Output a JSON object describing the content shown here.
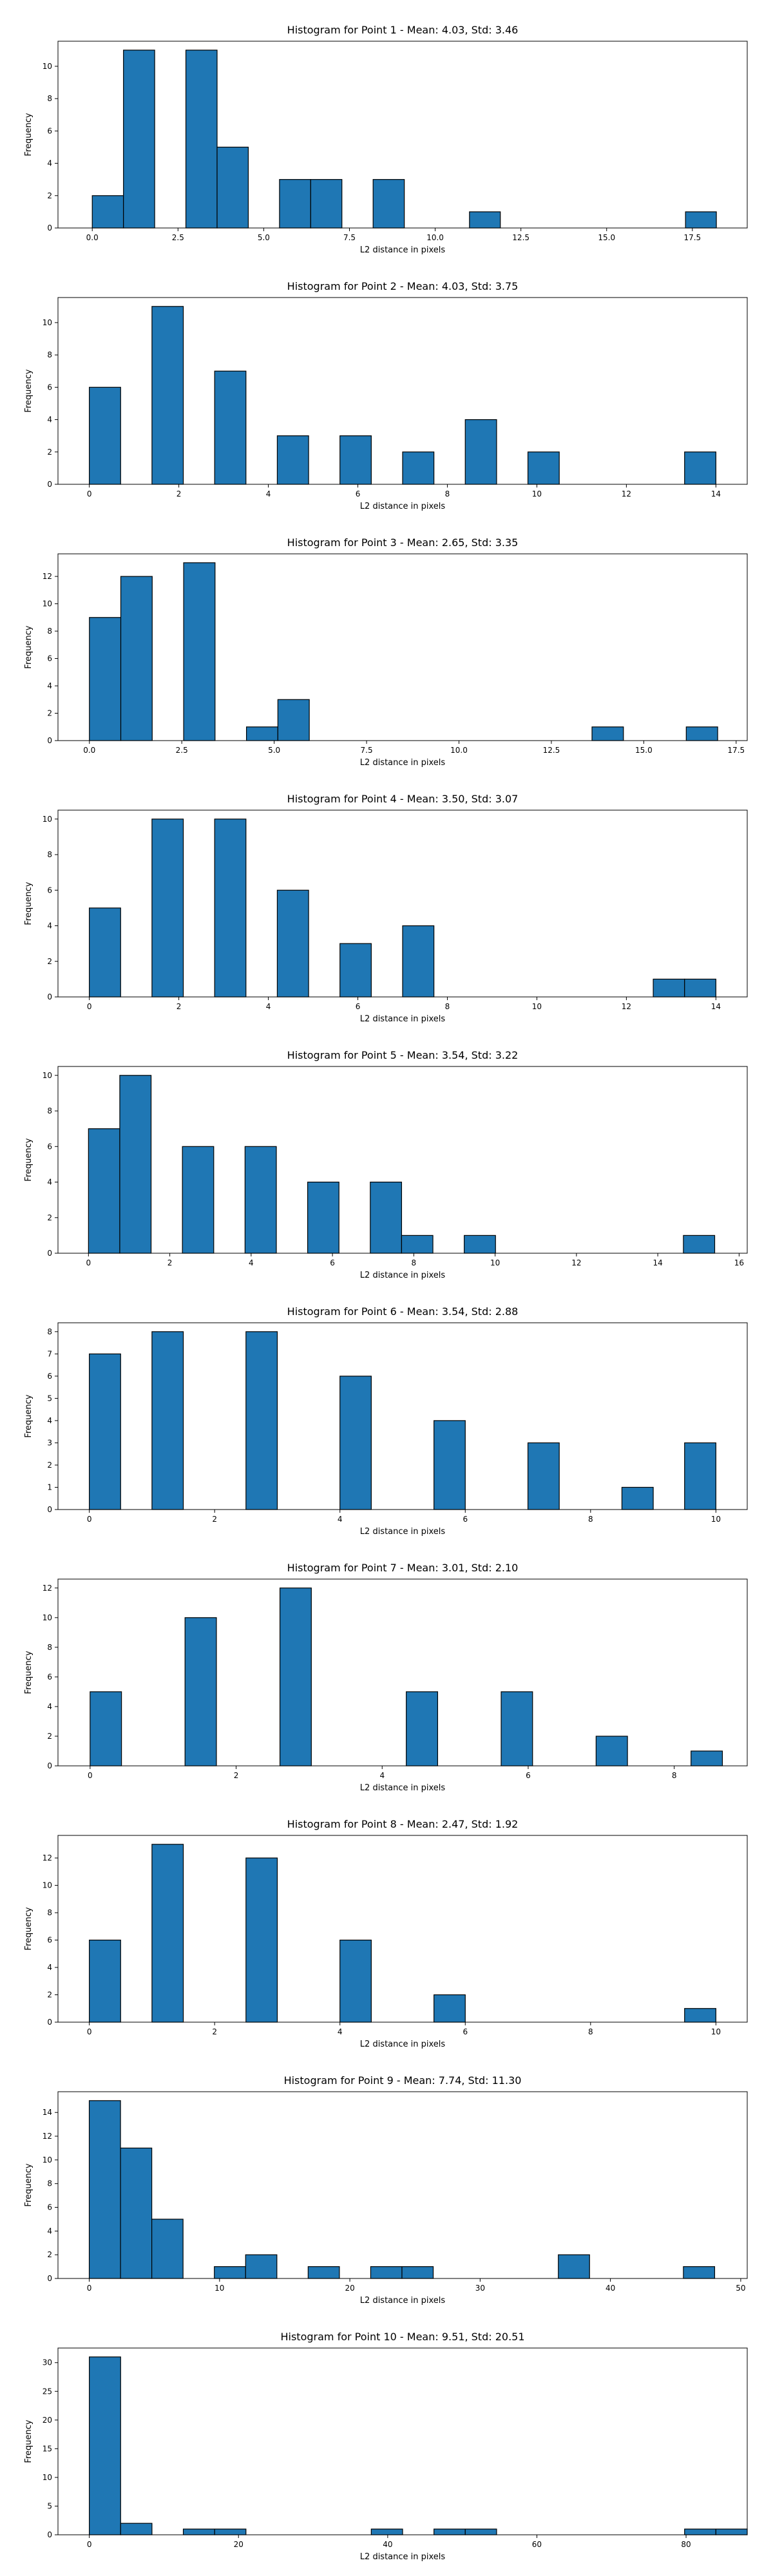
{
  "chart_data": [
    {
      "type": "bar",
      "title": "Histogram for Point 1 - Mean: 4.03, Std: 3.46",
      "xlabel": "L2 distance in pixels",
      "ylabel": "Frequency",
      "xlim": [
        -1.0,
        19.1
      ],
      "ylim": [
        0,
        11.55
      ],
      "xticks": [
        0.0,
        2.5,
        5.0,
        7.5,
        10.0,
        12.5,
        15.0,
        17.5
      ],
      "xtick_labels": [
        "0.0",
        "2.5",
        "5.0",
        "7.5",
        "10.0",
        "12.5",
        "15.0",
        "17.5"
      ],
      "yticks": [
        0,
        2,
        4,
        6,
        8,
        10
      ],
      "bars": [
        {
          "start": 0.0,
          "end": 0.91,
          "count": 2
        },
        {
          "start": 0.91,
          "end": 1.82,
          "count": 11
        },
        {
          "start": 2.73,
          "end": 3.64,
          "count": 11
        },
        {
          "start": 3.64,
          "end": 4.55,
          "count": 5
        },
        {
          "start": 5.46,
          "end": 6.37,
          "count": 3
        },
        {
          "start": 6.37,
          "end": 7.28,
          "count": 3
        },
        {
          "start": 8.19,
          "end": 9.1,
          "count": 3
        },
        {
          "start": 11.0,
          "end": 11.9,
          "count": 1
        },
        {
          "start": 17.3,
          "end": 18.2,
          "count": 1
        }
      ]
    },
    {
      "type": "bar",
      "title": "Histogram for Point 2 - Mean: 4.03, Std: 3.75",
      "xlabel": "L2 distance in pixels",
      "ylabel": "Frequency",
      "xlim": [
        -0.7,
        14.7
      ],
      "ylim": [
        0,
        11.55
      ],
      "xticks": [
        0,
        2,
        4,
        6,
        8,
        10,
        12,
        14
      ],
      "xtick_labels": [
        "0",
        "2",
        "4",
        "6",
        "8",
        "10",
        "12",
        "14"
      ],
      "yticks": [
        0,
        2,
        4,
        6,
        8,
        10
      ],
      "bars": [
        {
          "start": 0.0,
          "end": 0.7,
          "count": 6
        },
        {
          "start": 1.4,
          "end": 2.1,
          "count": 11
        },
        {
          "start": 2.8,
          "end": 3.5,
          "count": 7
        },
        {
          "start": 4.2,
          "end": 4.9,
          "count": 3
        },
        {
          "start": 5.6,
          "end": 6.3,
          "count": 3
        },
        {
          "start": 7.0,
          "end": 7.7,
          "count": 2
        },
        {
          "start": 8.4,
          "end": 9.1,
          "count": 4
        },
        {
          "start": 9.8,
          "end": 10.5,
          "count": 2
        },
        {
          "start": 13.3,
          "end": 14.0,
          "count": 2
        }
      ]
    },
    {
      "type": "bar",
      "title": "Histogram for Point 3 - Mean: 2.65, Std: 3.35",
      "xlabel": "L2 distance in pixels",
      "ylabel": "Frequency",
      "xlim": [
        -0.85,
        17.8
      ],
      "ylim": [
        0,
        13.65
      ],
      "xticks": [
        0.0,
        2.5,
        5.0,
        7.5,
        10.0,
        12.5,
        15.0,
        17.5
      ],
      "xtick_labels": [
        "0.0",
        "2.5",
        "5.0",
        "7.5",
        "10.0",
        "12.5",
        "15.0",
        "17.5"
      ],
      "yticks": [
        0,
        2,
        4,
        6,
        8,
        10,
        12
      ],
      "bars": [
        {
          "start": 0.0,
          "end": 0.85,
          "count": 9
        },
        {
          "start": 0.85,
          "end": 1.7,
          "count": 12
        },
        {
          "start": 2.55,
          "end": 3.4,
          "count": 13
        },
        {
          "start": 4.25,
          "end": 5.1,
          "count": 1
        },
        {
          "start": 5.1,
          "end": 5.95,
          "count": 3
        },
        {
          "start": 13.6,
          "end": 14.45,
          "count": 1
        },
        {
          "start": 16.15,
          "end": 17.0,
          "count": 1
        }
      ]
    },
    {
      "type": "bar",
      "title": "Histogram for Point 4 - Mean: 3.50, Std: 3.07",
      "xlabel": "L2 distance in pixels",
      "ylabel": "Frequency",
      "xlim": [
        -0.7,
        14.7
      ],
      "ylim": [
        0,
        10.5
      ],
      "xticks": [
        0,
        2,
        4,
        6,
        8,
        10,
        12,
        14
      ],
      "xtick_labels": [
        "0",
        "2",
        "4",
        "6",
        "8",
        "10",
        "12",
        "14"
      ],
      "yticks": [
        0,
        2,
        4,
        6,
        8,
        10
      ],
      "bars": [
        {
          "start": 0.0,
          "end": 0.7,
          "count": 5
        },
        {
          "start": 1.4,
          "end": 2.1,
          "count": 10
        },
        {
          "start": 2.8,
          "end": 3.5,
          "count": 10
        },
        {
          "start": 4.2,
          "end": 4.9,
          "count": 6
        },
        {
          "start": 5.6,
          "end": 6.3,
          "count": 3
        },
        {
          "start": 7.0,
          "end": 7.7,
          "count": 4
        },
        {
          "start": 12.6,
          "end": 13.3,
          "count": 1
        },
        {
          "start": 13.3,
          "end": 14.0,
          "count": 1
        }
      ]
    },
    {
      "type": "bar",
      "title": "Histogram for Point 5 - Mean: 3.54, Std: 3.22",
      "xlabel": "L2 distance in pixels",
      "ylabel": "Frequency",
      "xlim": [
        -0.75,
        16.2
      ],
      "ylim": [
        0,
        10.5
      ],
      "xticks": [
        0,
        2,
        4,
        6,
        8,
        10,
        12,
        14,
        16
      ],
      "xtick_labels": [
        "0",
        "2",
        "4",
        "6",
        "8",
        "10",
        "12",
        "14",
        "16"
      ],
      "yticks": [
        0,
        2,
        4,
        6,
        8,
        10
      ],
      "bars": [
        {
          "start": 0.0,
          "end": 0.77,
          "count": 7
        },
        {
          "start": 0.77,
          "end": 1.54,
          "count": 10
        },
        {
          "start": 2.31,
          "end": 3.08,
          "count": 6
        },
        {
          "start": 3.85,
          "end": 4.62,
          "count": 6
        },
        {
          "start": 5.39,
          "end": 6.16,
          "count": 4
        },
        {
          "start": 6.93,
          "end": 7.7,
          "count": 4
        },
        {
          "start": 7.7,
          "end": 8.47,
          "count": 1
        },
        {
          "start": 9.24,
          "end": 10.01,
          "count": 1
        },
        {
          "start": 14.63,
          "end": 15.4,
          "count": 1
        }
      ]
    },
    {
      "type": "bar",
      "title": "Histogram for Point 6 - Mean: 3.54, Std: 2.88",
      "xlabel": "L2 distance in pixels",
      "ylabel": "Frequency",
      "xlim": [
        -0.5,
        10.5
      ],
      "ylim": [
        0,
        8.4
      ],
      "xticks": [
        0,
        2,
        4,
        6,
        8,
        10
      ],
      "xtick_labels": [
        "0",
        "2",
        "4",
        "6",
        "8",
        "10"
      ],
      "yticks": [
        0,
        1,
        2,
        3,
        4,
        5,
        6,
        7,
        8
      ],
      "bars": [
        {
          "start": 0.0,
          "end": 0.5,
          "count": 7
        },
        {
          "start": 1.0,
          "end": 1.5,
          "count": 8
        },
        {
          "start": 2.5,
          "end": 3.0,
          "count": 8
        },
        {
          "start": 4.0,
          "end": 4.5,
          "count": 6
        },
        {
          "start": 5.5,
          "end": 6.0,
          "count": 4
        },
        {
          "start": 7.0,
          "end": 7.5,
          "count": 3
        },
        {
          "start": 8.5,
          "end": 9.0,
          "count": 1
        },
        {
          "start": 9.5,
          "end": 10.0,
          "count": 3
        }
      ]
    },
    {
      "type": "bar",
      "title": "Histogram for Point 7 - Mean: 3.01, Std: 2.10",
      "xlabel": "L2 distance in pixels",
      "ylabel": "Frequency",
      "xlim": [
        -0.44,
        9.0
      ],
      "ylim": [
        0,
        12.6
      ],
      "xticks": [
        0,
        2,
        4,
        6,
        8
      ],
      "xtick_labels": [
        "0",
        "2",
        "4",
        "6",
        "8"
      ],
      "yticks": [
        0,
        2,
        4,
        6,
        8,
        10,
        12
      ],
      "bars": [
        {
          "start": 0.0,
          "end": 0.43,
          "count": 5
        },
        {
          "start": 1.3,
          "end": 1.73,
          "count": 10
        },
        {
          "start": 2.6,
          "end": 3.03,
          "count": 12
        },
        {
          "start": 4.33,
          "end": 4.76,
          "count": 5
        },
        {
          "start": 5.63,
          "end": 6.06,
          "count": 5
        },
        {
          "start": 6.93,
          "end": 7.36,
          "count": 2
        },
        {
          "start": 8.23,
          "end": 8.66,
          "count": 1
        }
      ]
    },
    {
      "type": "bar",
      "title": "Histogram for Point 8 - Mean: 2.47, Std: 1.92",
      "xlabel": "L2 distance in pixels",
      "ylabel": "Frequency",
      "xlim": [
        -0.5,
        10.5
      ],
      "ylim": [
        0,
        13.65
      ],
      "xticks": [
        0,
        2,
        4,
        6,
        8,
        10
      ],
      "xtick_labels": [
        "0",
        "2",
        "4",
        "6",
        "8",
        "10"
      ],
      "yticks": [
        0,
        2,
        4,
        6,
        8,
        10,
        12
      ],
      "bars": [
        {
          "start": 0.0,
          "end": 0.5,
          "count": 6
        },
        {
          "start": 1.0,
          "end": 1.5,
          "count": 13
        },
        {
          "start": 2.5,
          "end": 3.0,
          "count": 12
        },
        {
          "start": 4.0,
          "end": 4.5,
          "count": 6
        },
        {
          "start": 5.5,
          "end": 6.0,
          "count": 2
        },
        {
          "start": 9.5,
          "end": 10.0,
          "count": 1
        }
      ]
    },
    {
      "type": "bar",
      "title": "Histogram for Point 9 - Mean: 7.74, Std: 11.30",
      "xlabel": "L2 distance in pixels",
      "ylabel": "Frequency",
      "xlim": [
        -2.4,
        50.5
      ],
      "ylim": [
        0,
        15.75
      ],
      "xticks": [
        0,
        10,
        20,
        30,
        40,
        50
      ],
      "xtick_labels": [
        "0",
        "10",
        "20",
        "30",
        "40",
        "50"
      ],
      "yticks": [
        0,
        2,
        4,
        6,
        8,
        10,
        12,
        14
      ],
      "bars": [
        {
          "start": 0.0,
          "end": 2.4,
          "count": 15
        },
        {
          "start": 2.4,
          "end": 4.8,
          "count": 11
        },
        {
          "start": 4.8,
          "end": 7.2,
          "count": 5
        },
        {
          "start": 9.6,
          "end": 12.0,
          "count": 1
        },
        {
          "start": 12.0,
          "end": 14.4,
          "count": 2
        },
        {
          "start": 16.8,
          "end": 19.2,
          "count": 1
        },
        {
          "start": 21.6,
          "end": 24.0,
          "count": 1
        },
        {
          "start": 24.0,
          "end": 26.4,
          "count": 1
        },
        {
          "start": 36.0,
          "end": 38.4,
          "count": 2
        },
        {
          "start": 45.6,
          "end": 48.0,
          "count": 1
        }
      ]
    },
    {
      "type": "bar",
      "title": "Histogram for Point 10 - Mean: 9.51, Std: 20.51",
      "xlabel": "L2 distance in pixels",
      "ylabel": "Frequency",
      "xlim": [
        -4.2,
        88.2
      ],
      "ylim": [
        0,
        32.55
      ],
      "xticks": [
        0,
        20,
        40,
        60,
        80
      ],
      "xtick_labels": [
        "0",
        "20",
        "40",
        "60",
        "80"
      ],
      "yticks": [
        0,
        5,
        10,
        15,
        20,
        25,
        30
      ],
      "bars": [
        {
          "start": 0.0,
          "end": 4.2,
          "count": 31
        },
        {
          "start": 4.2,
          "end": 8.4,
          "count": 2
        },
        {
          "start": 12.6,
          "end": 16.8,
          "count": 1
        },
        {
          "start": 16.8,
          "end": 21.0,
          "count": 1
        },
        {
          "start": 37.8,
          "end": 42.0,
          "count": 1
        },
        {
          "start": 46.2,
          "end": 50.4,
          "count": 1
        },
        {
          "start": 50.4,
          "end": 54.6,
          "count": 1
        },
        {
          "start": 79.8,
          "end": 84.0,
          "count": 1
        },
        {
          "start": 84.0,
          "end": 88.2,
          "count": 1
        }
      ]
    }
  ],
  "style": {
    "bar_fill": "#1f77b4",
    "bar_edge": "#000000",
    "axes_color": "#000000",
    "background": "#ffffff"
  }
}
